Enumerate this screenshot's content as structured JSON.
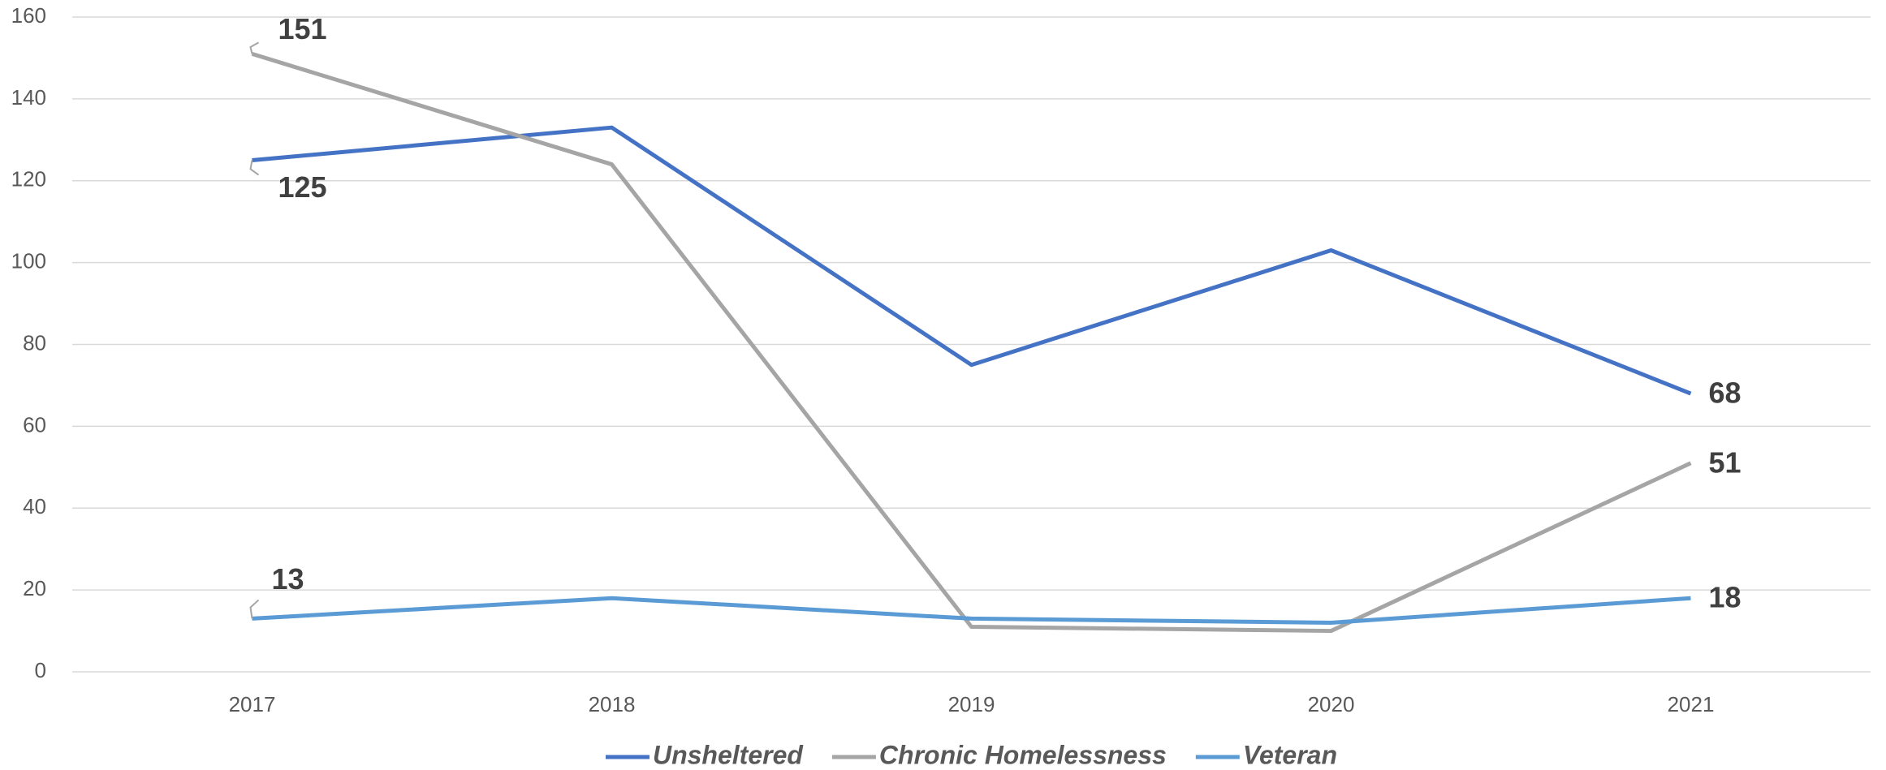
{
  "chart_data": {
    "type": "line",
    "categories": [
      "2017",
      "2018",
      "2019",
      "2020",
      "2021"
    ],
    "series": [
      {
        "name": "Unsheltered",
        "color": "#4472c4",
        "values": [
          125,
          133,
          75,
          103,
          68
        ]
      },
      {
        "name": "Chronic Homelessness",
        "color": "#a5a5a5",
        "values": [
          151,
          124,
          11,
          10,
          51
        ]
      },
      {
        "name": "Veteran",
        "color": "#5b9bd5",
        "values": [
          13,
          18,
          13,
          12,
          18
        ]
      }
    ],
    "data_labels": "ends",
    "ylim": [
      0,
      160
    ],
    "yticks": [
      0,
      20,
      40,
      60,
      80,
      100,
      120,
      140,
      160
    ],
    "grid": true,
    "legend": "bottom"
  }
}
